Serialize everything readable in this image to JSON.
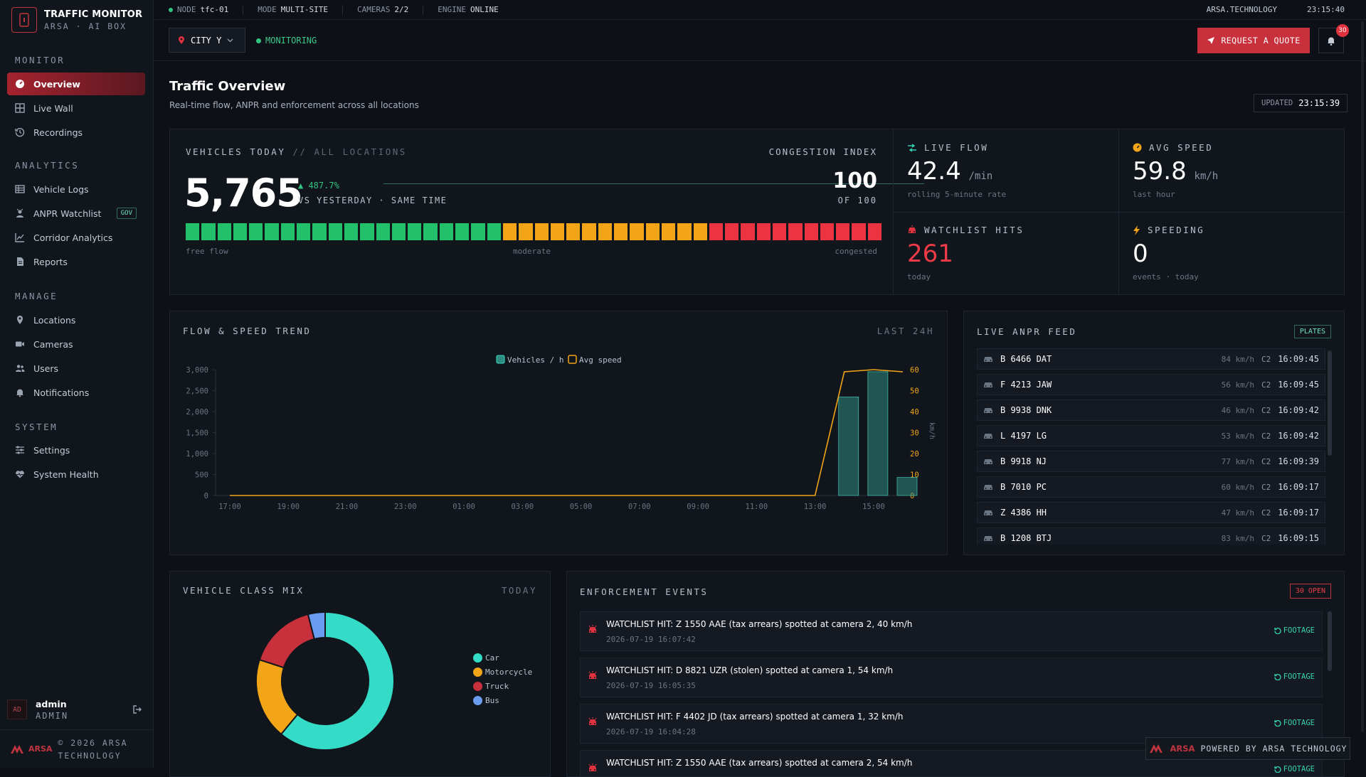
{
  "brand": {
    "title": "TRAFFIC MONITOR",
    "subtitle": "ARSA · AI BOX"
  },
  "sidebar": {
    "sections": [
      {
        "label": "MONITOR",
        "items": [
          {
            "label": "Overview",
            "active": true,
            "icon": "dashboard-icon"
          },
          {
            "label": "Live Wall",
            "icon": "grid-icon"
          },
          {
            "label": "Recordings",
            "icon": "history-icon"
          }
        ]
      },
      {
        "label": "ANALYTICS",
        "items": [
          {
            "label": "Vehicle Logs",
            "icon": "list-icon"
          },
          {
            "label": "ANPR Watchlist",
            "badge": "GOV",
            "icon": "shield-user-icon"
          },
          {
            "label": "Corridor Analytics",
            "icon": "chart-line-icon"
          },
          {
            "label": "Reports",
            "icon": "document-icon"
          }
        ]
      },
      {
        "label": "MANAGE",
        "items": [
          {
            "label": "Locations",
            "icon": "pin-icon"
          },
          {
            "label": "Cameras",
            "icon": "camera-icon"
          },
          {
            "label": "Users",
            "icon": "users-icon"
          },
          {
            "label": "Notifications",
            "icon": "bell-icon"
          }
        ]
      },
      {
        "label": "SYSTEM",
        "items": [
          {
            "label": "Settings",
            "icon": "sliders-icon"
          },
          {
            "label": "System Health",
            "icon": "heart-pulse-icon"
          }
        ]
      }
    ],
    "user": {
      "avatar": "AD",
      "name": "admin",
      "role": "ADMIN"
    },
    "copyright": {
      "brand": "ARSA",
      "line1": "© 2026 ARSA",
      "line2": "TECHNOLOGY"
    }
  },
  "topbar": {
    "node_label": "NODE",
    "node": "tfc-01",
    "mode_label": "MODE",
    "mode": "MULTI-SITE",
    "cameras_label": "CAMERAS",
    "cameras": "2/2",
    "engine_label": "ENGINE",
    "engine": "ONLINE",
    "site": "ARSA.TECHNOLOGY",
    "clock": "23:15:40"
  },
  "subbar": {
    "city": "CITY Y",
    "status": "MONITORING",
    "quote": "REQUEST A QUOTE",
    "notif_count": "30"
  },
  "page": {
    "title": "Traffic Overview",
    "subtitle": "Real-time flow, ANPR and enforcement across all locations",
    "updated_label": "UPDATED",
    "updated": "23:15:39"
  },
  "vehicles": {
    "label": "VEHICLES TODAY",
    "label_dim": "// ALL LOCATIONS",
    "count": "5,765",
    "delta": "▲ 487.7%",
    "compare": "VS YESTERDAY · SAME TIME",
    "congestion_label": "CONGESTION INDEX",
    "congestion": "100",
    "congestion_of": "OF 100",
    "congestion_level": 1.0,
    "scale": {
      "low": "free flow",
      "mid": "moderate",
      "high": "congested"
    },
    "colors": {
      "green": "#22c06a",
      "amber": "#f2a516",
      "red": "#ec3341"
    }
  },
  "metrics": {
    "live_flow": {
      "label": "LIVE FLOW",
      "value": "42.4",
      "unit": "/min",
      "foot": "rolling 5-minute rate",
      "icon": "flow-icon"
    },
    "avg_speed": {
      "label": "AVG SPEED",
      "value": "59.8",
      "unit": "km/h",
      "foot": "last hour",
      "icon": "gauge-icon"
    },
    "watchlist": {
      "label": "WATCHLIST HITS",
      "value": "261",
      "foot": "today",
      "icon": "car-alert-icon"
    },
    "speeding": {
      "label": "SPEEDING",
      "value": "0",
      "foot": "events · today",
      "icon": "bolt-icon"
    }
  },
  "trend": {
    "title": "FLOW & SPEED TREND",
    "range": "LAST 24H",
    "legend_vehicles": "Vehicles / h",
    "legend_speed": "Avg speed",
    "y2label": "km/h"
  },
  "chart_data": {
    "type": "bar",
    "categories": [
      "17:00",
      "18:00",
      "19:00",
      "20:00",
      "21:00",
      "22:00",
      "23:00",
      "00:00",
      "01:00",
      "02:00",
      "03:00",
      "04:00",
      "05:00",
      "06:00",
      "07:00",
      "08:00",
      "09:00",
      "10:00",
      "11:00",
      "12:00",
      "13:00",
      "14:00",
      "15:00",
      "16:00"
    ],
    "tick_labels": [
      "17:00",
      "19:00",
      "21:00",
      "23:00",
      "01:00",
      "03:00",
      "05:00",
      "07:00",
      "09:00",
      "11:00",
      "13:00",
      "15:00"
    ],
    "series": [
      {
        "name": "Vehicles / h",
        "type": "bar",
        "axis": "left",
        "color": "#2f8a80",
        "values": [
          0,
          0,
          0,
          0,
          0,
          0,
          0,
          0,
          0,
          0,
          0,
          0,
          0,
          0,
          0,
          0,
          0,
          0,
          0,
          0,
          0,
          2350,
          2950,
          430
        ]
      },
      {
        "name": "Avg speed",
        "type": "line",
        "axis": "right",
        "color": "#f2a516",
        "values": [
          0,
          0,
          0,
          0,
          0,
          0,
          0,
          0,
          0,
          0,
          0,
          0,
          0,
          0,
          0,
          0,
          0,
          0,
          0,
          0,
          0,
          59,
          60,
          59
        ]
      }
    ],
    "ylim": [
      0,
      3000
    ],
    "y_ticks": [
      "0",
      "500",
      "1,000",
      "1,500",
      "2,000",
      "2,500",
      "3,000"
    ],
    "y2lim": [
      0,
      60
    ],
    "y2_ticks": [
      "0",
      "10",
      "20",
      "30",
      "40",
      "50",
      "60"
    ],
    "legend": "top-center",
    "grid": false
  },
  "anpr": {
    "title": "LIVE ANPR FEED",
    "badge": "PLATES",
    "rows": [
      {
        "plate": "B 6466 DAT",
        "speed": "84 km/h",
        "cam": "C2",
        "time": "16:09:45"
      },
      {
        "plate": "F 4213 JAW",
        "speed": "56 km/h",
        "cam": "C2",
        "time": "16:09:45"
      },
      {
        "plate": "B 9938 DNK",
        "speed": "46 km/h",
        "cam": "C2",
        "time": "16:09:42"
      },
      {
        "plate": "L 4197 LG",
        "speed": "53 km/h",
        "cam": "C2",
        "time": "16:09:42"
      },
      {
        "plate": "B 9918 NJ",
        "speed": "77 km/h",
        "cam": "C2",
        "time": "16:09:39"
      },
      {
        "plate": "B 7010 PC",
        "speed": "60 km/h",
        "cam": "C2",
        "time": "16:09:17"
      },
      {
        "plate": "Z 4386 HH",
        "speed": "47 km/h",
        "cam": "C2",
        "time": "16:09:17"
      },
      {
        "plate": "B 1208 BTJ",
        "speed": "83 km/h",
        "cam": "C2",
        "time": "16:09:15"
      }
    ]
  },
  "class_mix": {
    "title": "VEHICLE CLASS MIX",
    "range": "TODAY",
    "slices": [
      {
        "name": "Car",
        "value": 61,
        "color": "#34dcc7"
      },
      {
        "name": "Motorcycle",
        "value": 19,
        "color": "#f2a516"
      },
      {
        "name": "Truck",
        "value": 16,
        "color": "#c8303c"
      },
      {
        "name": "Bus",
        "value": 4,
        "color": "#6a9df0"
      }
    ]
  },
  "enforcement": {
    "title": "ENFORCEMENT EVENTS",
    "badge": "30 OPEN",
    "footage": "FOOTAGE",
    "events": [
      {
        "title": "WATCHLIST HIT: Z 1550 AAE (tax arrears) spotted at camera 2, 40 km/h",
        "time": "2026-07-19 16:07:42"
      },
      {
        "title": "WATCHLIST HIT: D 8821 UZR (stolen) spotted at camera 1, 54 km/h",
        "time": "2026-07-19 16:05:35"
      },
      {
        "title": "WATCHLIST HIT: F 4402 JD (tax arrears) spotted at camera 1, 32 km/h",
        "time": "2026-07-19 16:04:28"
      },
      {
        "title": "WATCHLIST HIT: Z 1550 AAE (tax arrears) spotted at camera 2, 54 km/h",
        "time": ""
      }
    ]
  },
  "powered": {
    "brand": "ARSA",
    "text": "POWERED BY ARSA TECHNOLOGY"
  }
}
